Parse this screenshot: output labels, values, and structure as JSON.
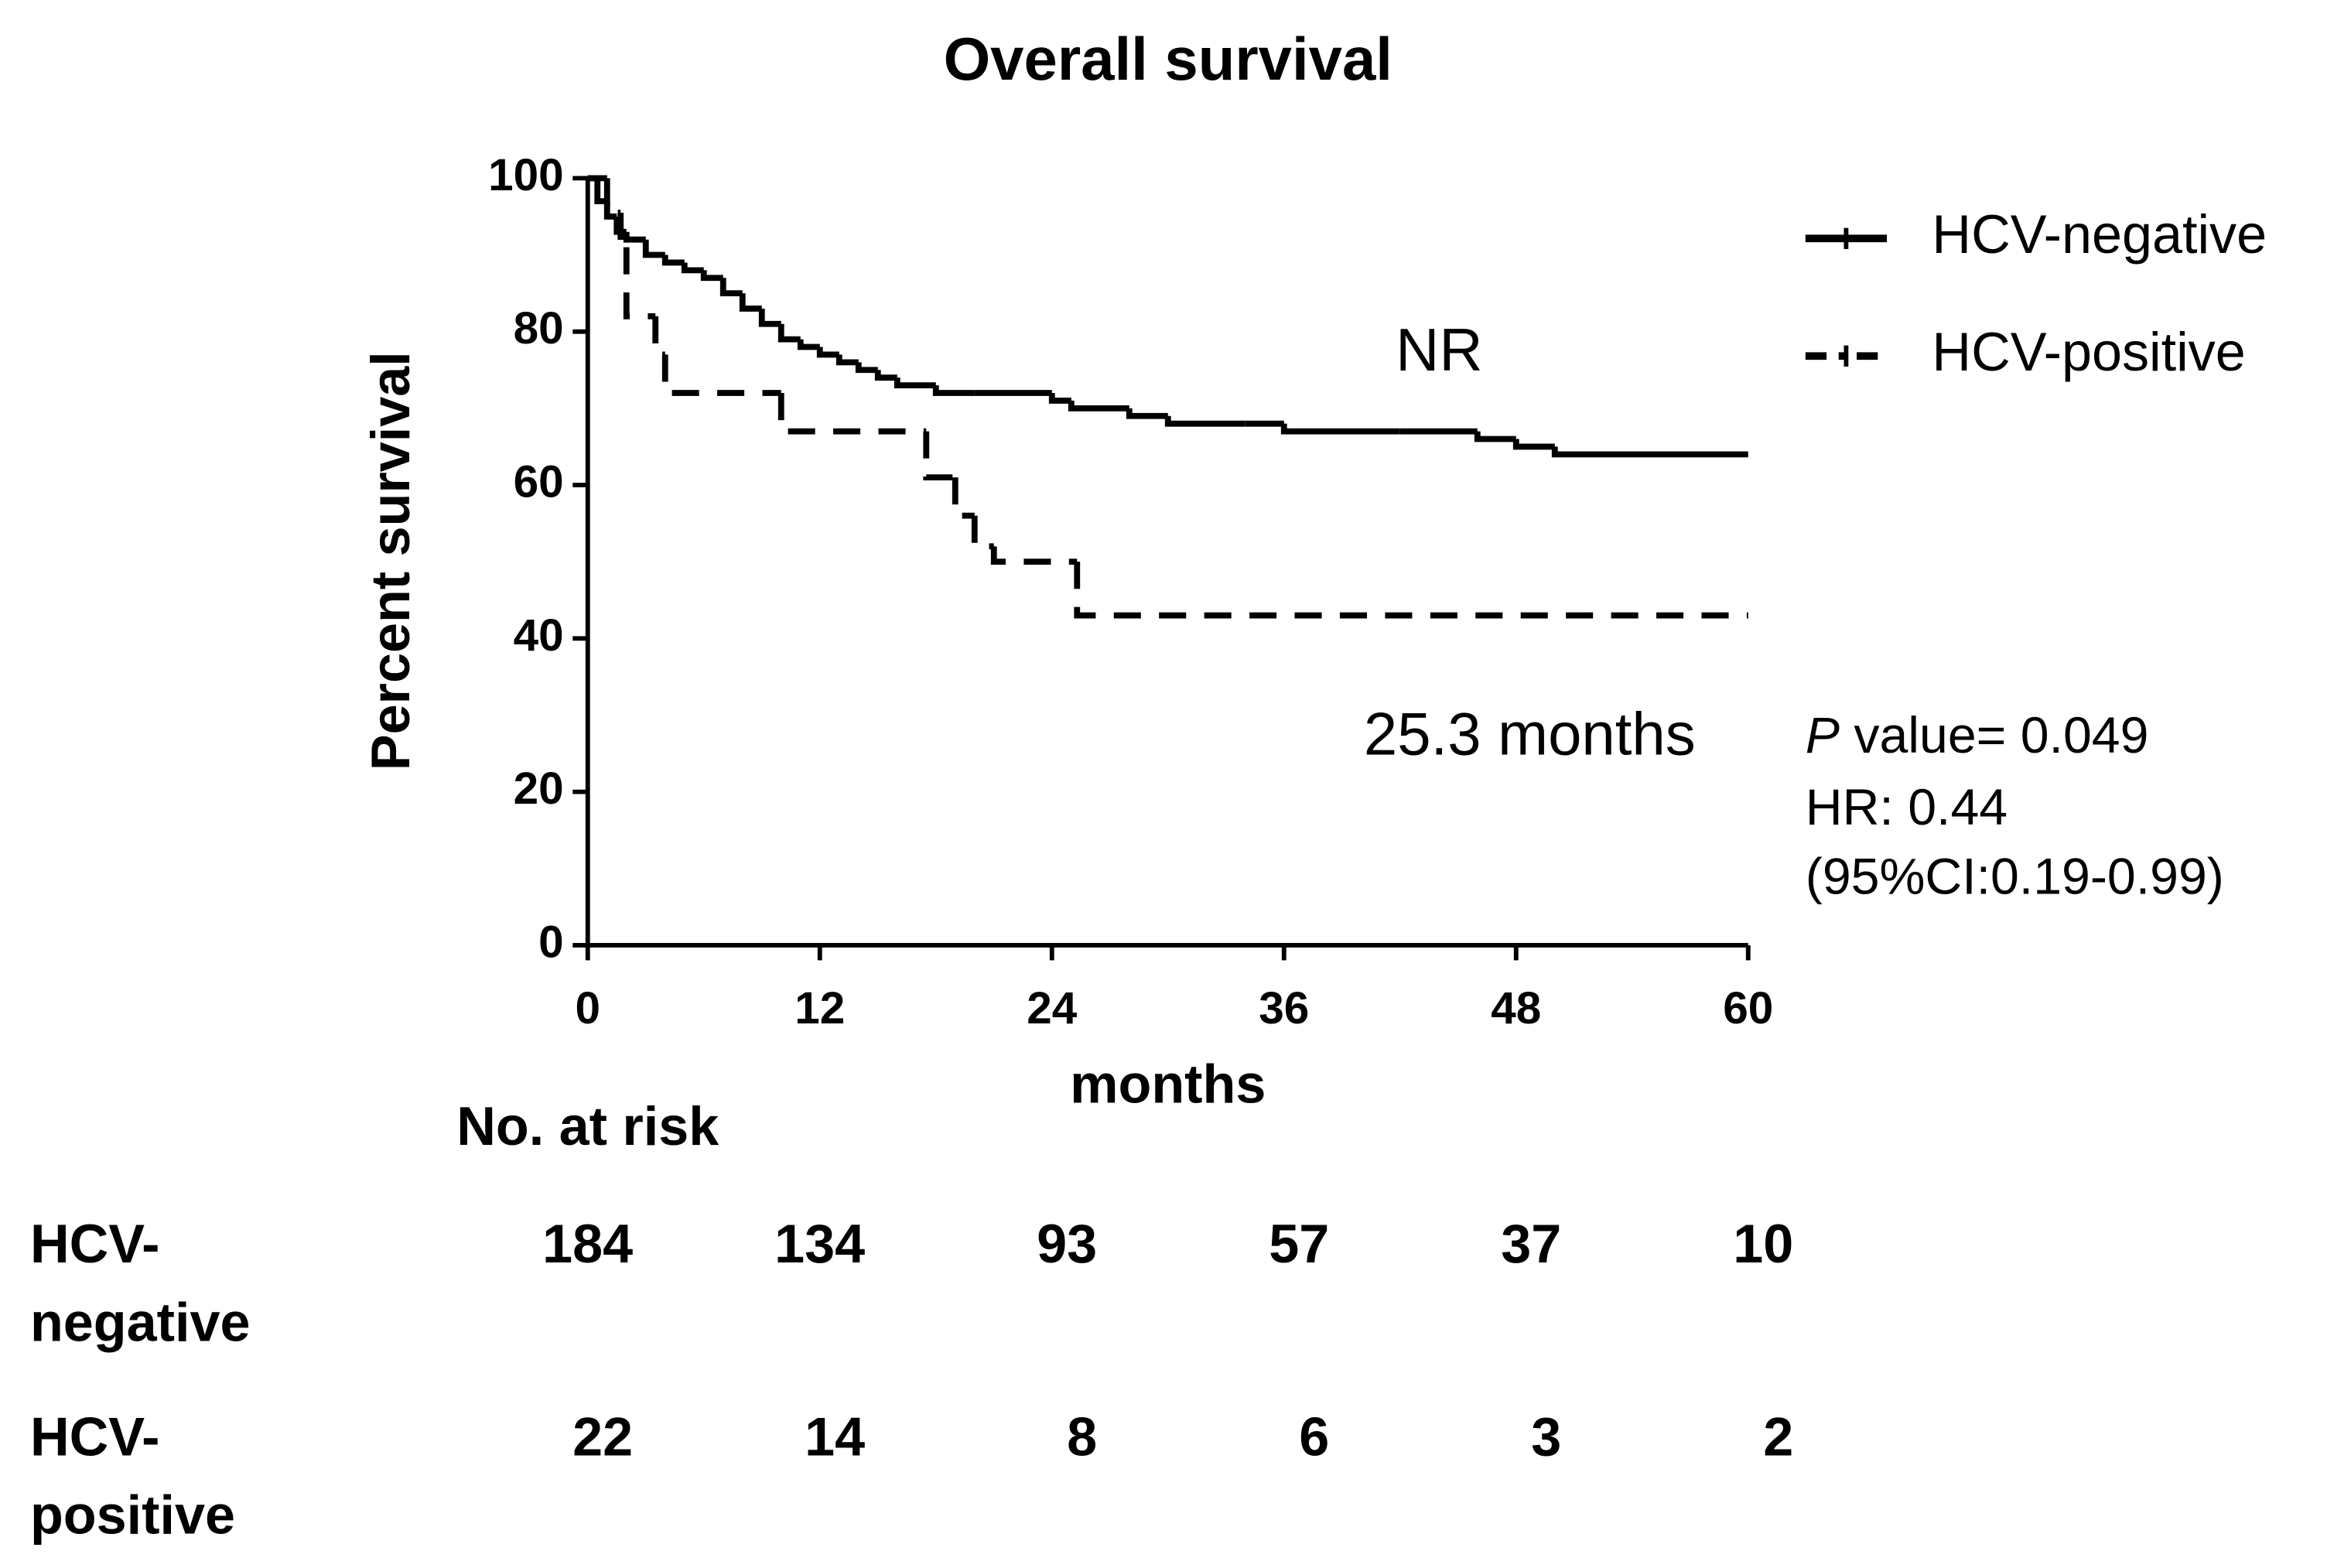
{
  "chart_data": {
    "type": "step",
    "title": "Overall survival",
    "y_label": "Percent survival",
    "x_label": "months",
    "xlim": [
      0,
      60
    ],
    "xticks": [
      0,
      12,
      24,
      36,
      48,
      60
    ],
    "ylim": [
      0,
      100
    ],
    "yticks": [
      0,
      20,
      40,
      60,
      80,
      100
    ],
    "legend": "top-right",
    "series": [
      {
        "name": "HCV-negative",
        "color": "#000000",
        "dash": "solid",
        "x": [
          0,
          0.5,
          1,
          1.5,
          2,
          3,
          4,
          5,
          6,
          7,
          8,
          9,
          10,
          11,
          12,
          13,
          14,
          15,
          16,
          18,
          20,
          24,
          25,
          28,
          30,
          34,
          36,
          42,
          46,
          48,
          50,
          60
        ],
        "values": [
          100,
          97,
          95,
          93,
          92,
          90,
          89,
          88,
          87,
          85,
          83,
          81,
          79,
          78,
          77,
          76,
          75,
          74,
          73,
          72,
          72,
          71,
          70,
          69,
          68,
          68,
          67,
          67,
          66,
          65,
          64,
          64
        ]
      },
      {
        "name": "HCV-positive",
        "color": "#000000",
        "dash": "dashed",
        "x": [
          0,
          1,
          1.7,
          2,
          3.5,
          4,
          10,
          17.5,
          19,
          20,
          21,
          25.3,
          60
        ],
        "values": [
          100,
          95.5,
          91,
          82,
          77,
          72,
          67,
          61,
          56,
          52,
          50,
          43,
          43
        ]
      }
    ],
    "annotations": {
      "median_negative": "NR",
      "median_positive": "25.3 months",
      "p_symbol": "P",
      "p_text": "value= 0.049",
      "hr": "HR: 0.44",
      "ci": "(95%CI:0.19-0.99)"
    },
    "risk_table": {
      "title": "No. at risk",
      "rows": [
        {
          "name": [
            "HCV-",
            "negative"
          ],
          "values": [
            184,
            134,
            93,
            57,
            37,
            10
          ]
        },
        {
          "name": [
            "HCV-",
            "positive"
          ],
          "values": [
            22,
            14,
            8,
            6,
            3,
            2
          ]
        }
      ]
    }
  }
}
